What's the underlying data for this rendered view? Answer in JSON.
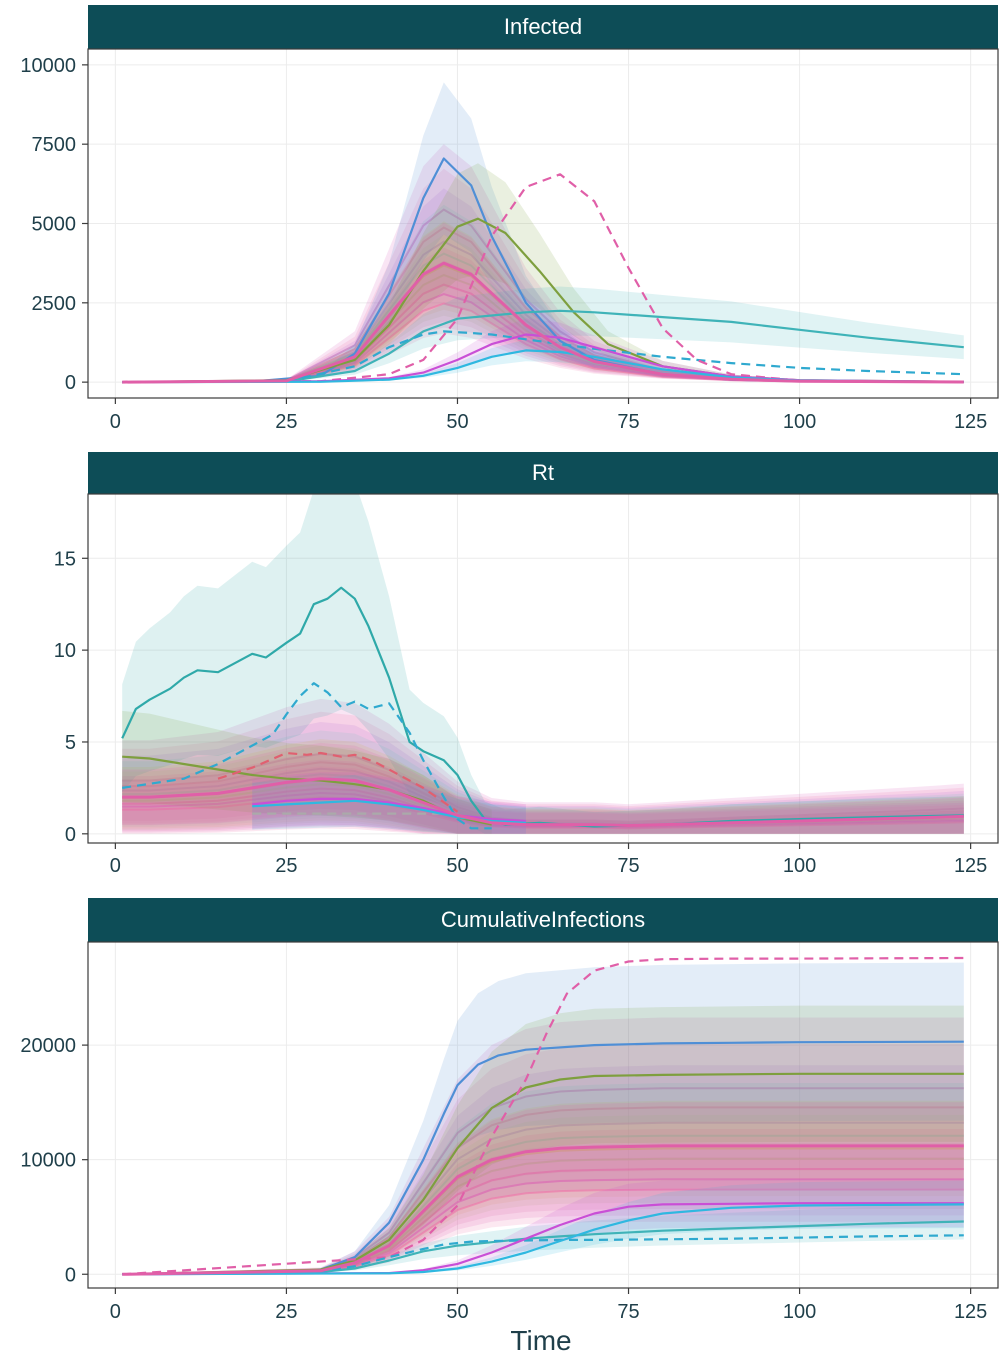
{
  "chart_data": [
    {
      "type": "line",
      "title": "Infected",
      "xlabel": "",
      "ylabel": "",
      "xlim": [
        -4,
        129
      ],
      "ylim": [
        -500,
        10500
      ],
      "x_ticks": [
        0,
        25,
        50,
        75,
        100,
        125
      ],
      "y_ticks": [
        0,
        2500,
        5000,
        7500,
        10000
      ],
      "y_tick_labels": [
        "0",
        "2500",
        "5000",
        "7500",
        "10000"
      ],
      "grid": true,
      "series": [
        {
          "color": "#4f8fd6",
          "dash": false,
          "x": [
            1,
            20,
            30,
            35,
            40,
            45,
            48,
            52,
            55,
            60,
            65,
            70,
            80,
            90,
            100,
            124
          ],
          "y": [
            0,
            20,
            200,
            900,
            2800,
            5800,
            7050,
            6200,
            4600,
            2500,
            1300,
            700,
            250,
            80,
            30,
            5
          ]
        },
        {
          "color": "#7e9f3e",
          "dash": false,
          "x": [
            1,
            25,
            35,
            40,
            45,
            50,
            53,
            57,
            62,
            67,
            72,
            80,
            90,
            100,
            124
          ],
          "y": [
            0,
            60,
            700,
            1800,
            3500,
            4900,
            5150,
            4700,
            3500,
            2200,
            1200,
            500,
            180,
            60,
            10
          ]
        },
        {
          "color": "#3fb3b8",
          "dash": false,
          "x": [
            1,
            25,
            35,
            40,
            45,
            50,
            55,
            60,
            65,
            70,
            80,
            90,
            100,
            110,
            124
          ],
          "y": [
            0,
            20,
            350,
            900,
            1600,
            2000,
            2100,
            2200,
            2250,
            2200,
            2050,
            1900,
            1650,
            1400,
            1100
          ]
        },
        {
          "color": "#2fa9cf",
          "dash": true,
          "x": [
            1,
            25,
            35,
            40,
            45,
            48,
            52,
            55,
            60,
            70,
            80,
            90,
            100,
            110,
            124
          ],
          "y": [
            0,
            30,
            500,
            1100,
            1500,
            1600,
            1550,
            1500,
            1350,
            1050,
            800,
            600,
            450,
            350,
            250
          ]
        },
        {
          "color": "#e05fa8",
          "dash": true,
          "x": [
            1,
            30,
            40,
            45,
            50,
            55,
            60,
            65,
            70,
            75,
            80,
            85,
            90,
            100,
            124
          ],
          "y": [
            0,
            30,
            250,
            700,
            2000,
            4600,
            6150,
            6550,
            5700,
            3600,
            1700,
            700,
            250,
            50,
            5
          ]
        },
        {
          "color": "#c94fd6",
          "dash": false,
          "x": [
            1,
            30,
            40,
            45,
            50,
            55,
            60,
            65,
            70,
            80,
            90,
            100,
            124
          ],
          "y": [
            0,
            30,
            120,
            300,
            700,
            1200,
            1500,
            1400,
            1100,
            500,
            180,
            60,
            10
          ]
        },
        {
          "color": "#2fb8e0",
          "dash": false,
          "x": [
            1,
            30,
            40,
            45,
            50,
            55,
            60,
            65,
            70,
            80,
            90,
            100,
            124
          ],
          "y": [
            0,
            10,
            80,
            200,
            450,
            800,
            1000,
            950,
            800,
            400,
            150,
            50,
            10
          ]
        },
        {
          "color": "#e05fa8",
          "dash": false,
          "x": [
            1,
            25,
            35,
            40,
            45,
            48,
            52,
            55,
            60,
            65,
            70,
            80,
            90,
            100,
            124
          ],
          "y": [
            0,
            40,
            800,
            2100,
            3400,
            3750,
            3400,
            2800,
            1800,
            1100,
            650,
            250,
            90,
            30,
            5
          ]
        }
      ],
      "legend": "none"
    },
    {
      "type": "line",
      "title": "Rt",
      "xlabel": "",
      "ylabel": "",
      "xlim": [
        -4,
        129
      ],
      "ylim": [
        -0.5,
        18.5
      ],
      "x_ticks": [
        0,
        25,
        50,
        75,
        100,
        125
      ],
      "y_ticks": [
        0,
        5,
        10,
        15
      ],
      "y_tick_labels": [
        "0",
        "5",
        "10",
        "15"
      ],
      "grid": true,
      "series": [
        {
          "color": "#2fa9a9",
          "dash": false,
          "x": [
            1,
            3,
            5,
            8,
            10,
            12,
            15,
            18,
            20,
            22,
            25,
            27,
            29,
            31,
            33,
            35,
            37,
            40,
            43,
            45,
            48,
            50,
            52,
            54,
            57,
            62,
            70,
            80,
            90,
            100,
            110,
            124
          ],
          "y": [
            5.2,
            6.8,
            7.3,
            7.9,
            8.5,
            8.9,
            8.8,
            9.4,
            9.8,
            9.6,
            10.4,
            10.9,
            12.5,
            12.8,
            13.4,
            12.8,
            11.3,
            8.5,
            5.0,
            4.5,
            4.0,
            3.2,
            1.8,
            0.8,
            0.5,
            0.6,
            0.4,
            0.5,
            0.7,
            0.8,
            0.9,
            1.0
          ]
        },
        {
          "color": "#2fa9cf",
          "dash": true,
          "x": [
            1,
            10,
            15,
            20,
            23,
            25,
            27,
            29,
            31,
            33,
            35,
            37,
            40,
            43,
            45,
            48,
            50,
            52,
            55
          ],
          "y": [
            2.5,
            3.0,
            3.8,
            4.8,
            5.4,
            6.5,
            7.5,
            8.2,
            7.7,
            6.9,
            7.2,
            6.8,
            7.1,
            5.5,
            4.0,
            2.0,
            0.8,
            0.3,
            0.3
          ]
        },
        {
          "color": "#7e9f3e",
          "dash": false,
          "x": [
            1,
            5,
            10,
            15,
            20,
            25,
            30,
            35,
            40,
            45,
            50,
            55
          ],
          "y": [
            4.2,
            4.1,
            3.8,
            3.5,
            3.2,
            3.0,
            2.9,
            2.7,
            2.4,
            1.8,
            0.9,
            0.5
          ]
        },
        {
          "color": "#e06070",
          "dash": true,
          "x": [
            15,
            20,
            25,
            28,
            30,
            33,
            35,
            38,
            40,
            45,
            50
          ],
          "y": [
            3.0,
            3.6,
            4.4,
            4.3,
            4.4,
            4.2,
            4.3,
            3.9,
            3.5,
            2.5,
            1.2
          ]
        },
        {
          "color": "#aaaaaa",
          "dash": true,
          "x": [
            20,
            25,
            30,
            35,
            40,
            45,
            48
          ],
          "y": [
            1.1,
            1.1,
            1.1,
            1.1,
            1.1,
            1.1,
            1.1
          ]
        },
        {
          "color": "#c94fd6",
          "dash": false,
          "x": [
            20,
            25,
            30,
            35,
            40,
            45,
            50,
            55,
            60
          ],
          "y": [
            1.6,
            1.8,
            1.9,
            1.9,
            1.7,
            1.4,
            1.0,
            0.8,
            0.7
          ]
        },
        {
          "color": "#2fb8e0",
          "dash": false,
          "x": [
            20,
            25,
            30,
            35,
            40,
            45,
            50,
            55,
            60
          ],
          "y": [
            1.5,
            1.6,
            1.7,
            1.8,
            1.6,
            1.3,
            0.9,
            0.7,
            0.6
          ]
        },
        {
          "color": "#e05fa8",
          "dash": false,
          "x": [
            1,
            5,
            10,
            15,
            20,
            25,
            30,
            35,
            40,
            45,
            50,
            55,
            60,
            65,
            70,
            75,
            80,
            85,
            90,
            95,
            100,
            105,
            110,
            115,
            120,
            124
          ],
          "y": [
            2.0,
            2.0,
            2.1,
            2.2,
            2.5,
            2.8,
            3.0,
            2.9,
            2.4,
            1.7,
            1.0,
            0.6,
            0.5,
            0.5,
            0.5,
            0.45,
            0.5,
            0.55,
            0.6,
            0.65,
            0.7,
            0.75,
            0.8,
            0.85,
            0.9,
            0.95
          ]
        }
      ],
      "legend": "none"
    },
    {
      "type": "line",
      "title": "CumulativeInfections",
      "xlabel": "Time",
      "ylabel": "",
      "xlim": [
        -4,
        129
      ],
      "ylim": [
        -1200,
        29000
      ],
      "x_ticks": [
        0,
        25,
        50,
        75,
        100,
        125
      ],
      "y_ticks": [
        0,
        10000,
        20000
      ],
      "y_tick_labels": [
        "0",
        "10000",
        "20000"
      ],
      "grid": true,
      "series": [
        {
          "color": "#4f8fd6",
          "dash": false,
          "x": [
            1,
            25,
            30,
            35,
            40,
            45,
            48,
            50,
            53,
            56,
            60,
            70,
            80,
            90,
            100,
            124
          ],
          "y": [
            0,
            100,
            400,
            1500,
            4500,
            10000,
            14000,
            16500,
            18300,
            19100,
            19600,
            20000,
            20150,
            20200,
            20250,
            20300
          ]
        },
        {
          "color": "#7e9f3e",
          "dash": false,
          "x": [
            1,
            30,
            35,
            40,
            45,
            50,
            55,
            60,
            65,
            70,
            80,
            90,
            100,
            124
          ],
          "y": [
            0,
            400,
            1200,
            3000,
            6500,
            11000,
            14500,
            16300,
            17000,
            17300,
            17400,
            17450,
            17500,
            17500
          ]
        },
        {
          "color": "#e05fa8",
          "dash": true,
          "x": [
            1,
            40,
            45,
            50,
            55,
            58,
            60,
            63,
            66,
            70,
            75,
            80,
            90,
            100,
            124
          ],
          "y": [
            0,
            1500,
            3000,
            6000,
            12000,
            15000,
            17000,
            21000,
            24500,
            26500,
            27300,
            27500,
            27550,
            27550,
            27600
          ]
        },
        {
          "color": "#3fb3b8",
          "dash": false,
          "x": [
            1,
            30,
            35,
            40,
            45,
            50,
            55,
            60,
            65,
            70,
            80,
            90,
            100,
            110,
            124
          ],
          "y": [
            0,
            200,
            500,
            1200,
            2000,
            2500,
            2800,
            3100,
            3300,
            3500,
            3800,
            4000,
            4200,
            4400,
            4600
          ]
        },
        {
          "color": "#2fa9cf",
          "dash": true,
          "x": [
            1,
            30,
            35,
            40,
            45,
            48,
            52,
            55,
            60,
            65,
            70,
            80,
            90,
            100,
            110,
            124
          ],
          "y": [
            0,
            250,
            700,
            1500,
            2200,
            2600,
            2850,
            2900,
            2950,
            3000,
            3000,
            3050,
            3100,
            3200,
            3300,
            3400
          ]
        },
        {
          "color": "#c94fd6",
          "dash": false,
          "x": [
            1,
            40,
            45,
            50,
            55,
            60,
            65,
            70,
            75,
            80,
            90,
            100,
            124
          ],
          "y": [
            0,
            100,
            350,
            900,
            1900,
            3100,
            4300,
            5300,
            5900,
            6100,
            6150,
            6200,
            6200
          ]
        },
        {
          "color": "#2fb8e0",
          "dash": false,
          "x": [
            1,
            40,
            45,
            50,
            55,
            60,
            65,
            70,
            75,
            80,
            90,
            100,
            124
          ],
          "y": [
            0,
            80,
            200,
            500,
            1100,
            1900,
            2900,
            3900,
            4700,
            5300,
            5800,
            6000,
            6100
          ]
        },
        {
          "color": "#e05fa8",
          "dash": false,
          "x": [
            1,
            30,
            35,
            40,
            45,
            50,
            55,
            60,
            65,
            70,
            80,
            90,
            100,
            124
          ],
          "y": [
            0,
            300,
            1000,
            2500,
            5500,
            8500,
            10000,
            10700,
            11000,
            11100,
            11200,
            11200,
            11200,
            11200
          ]
        }
      ],
      "legend": "none"
    }
  ]
}
